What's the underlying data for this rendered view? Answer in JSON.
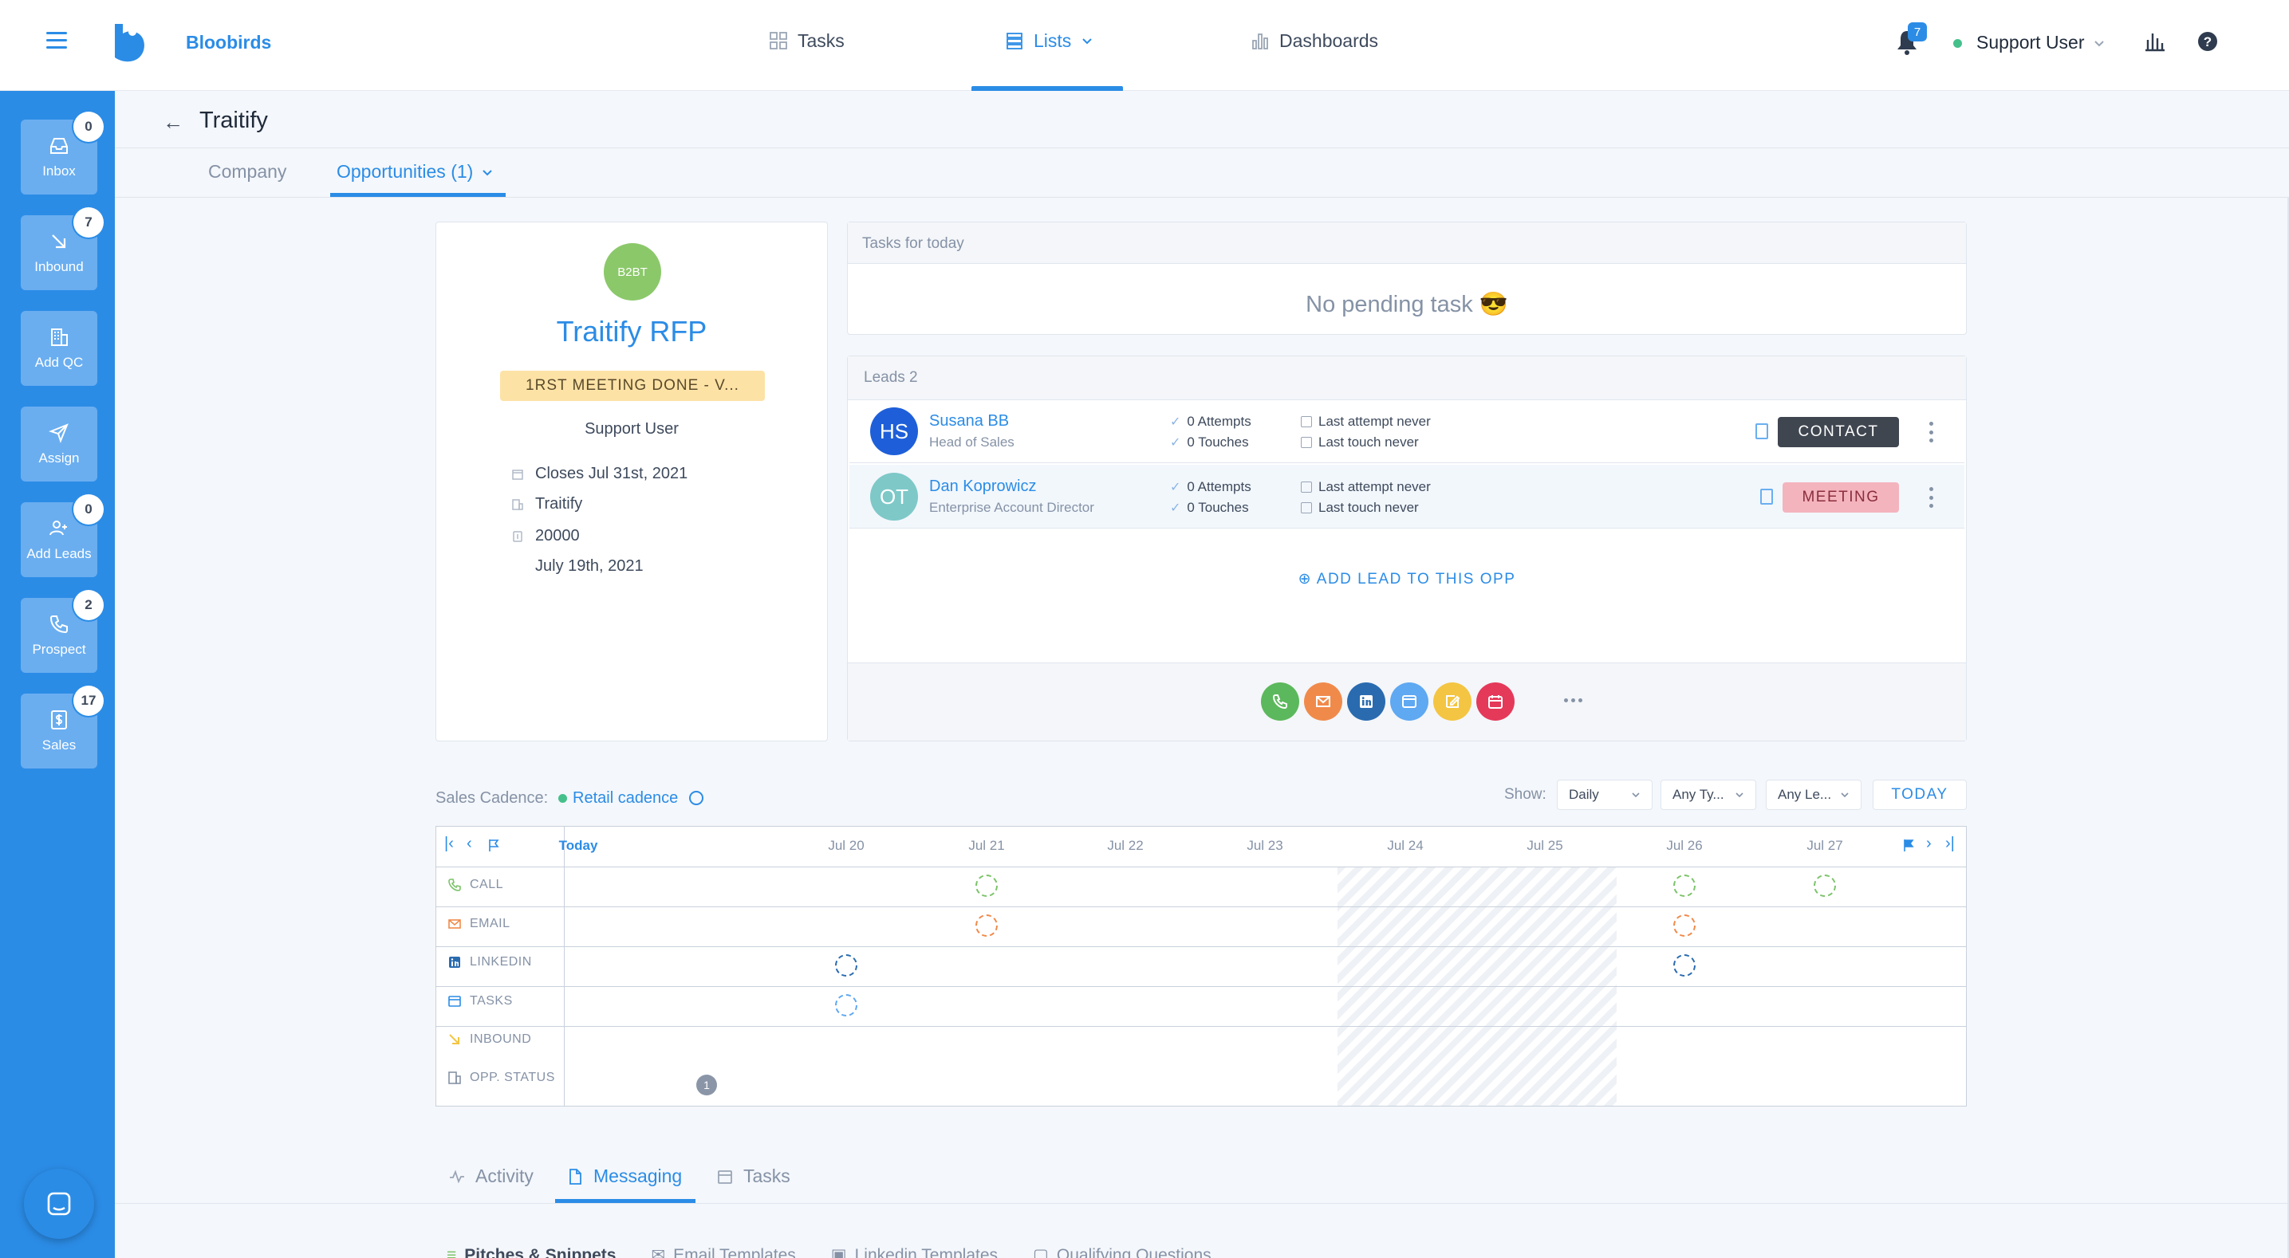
{
  "app": {
    "brand": "Bloobirds",
    "notifications": "7",
    "user": "Support User"
  },
  "nav": {
    "tasks": "Tasks",
    "lists": "Lists",
    "dashboards": "Dashboards"
  },
  "sidebar": {
    "items": [
      {
        "label": "Inbox",
        "badge": "0",
        "icon": "inbox-icon"
      },
      {
        "label": "Inbound",
        "badge": "7",
        "icon": "arrow-down-right-icon"
      },
      {
        "label": "Add QC",
        "badge": "",
        "icon": "building-icon"
      },
      {
        "label": "Assign",
        "badge": "",
        "icon": "send-icon"
      },
      {
        "label": "Add Leads",
        "badge": "0",
        "icon": "add-user-icon"
      },
      {
        "label": "Prospect",
        "badge": "2",
        "icon": "phone-icon"
      },
      {
        "label": "Sales",
        "badge": "17",
        "icon": "dollar-icon"
      }
    ]
  },
  "page": {
    "title": "Traitify"
  },
  "subtabs": {
    "company": "Company",
    "opportunities": "Opportunities (1)"
  },
  "opportunity": {
    "initials": "B2BT",
    "name": "Traitify RFP",
    "status": "1RST MEETING DONE - V...",
    "owner": "Support User",
    "close_date": "Closes Jul 31st, 2021",
    "company": "Traitify",
    "amount": "20000",
    "created": "July 19th, 2021"
  },
  "tasks_today": {
    "title": "Tasks for today",
    "empty": "No pending task 😎"
  },
  "leads": {
    "title": "Leads 2",
    "rows": [
      {
        "initials": "HS",
        "name": "Susana BB",
        "role": "Head of Sales",
        "attempts": "0 Attempts",
        "touches": "0 Touches",
        "last_attempt": "Last attempt never",
        "last_touch": "Last touch never",
        "action": "CONTACT",
        "avatar_color": "#1e5fd9"
      },
      {
        "initials": "OT",
        "name": "Dan Koprowicz",
        "role": "Enterprise Account Director",
        "attempts": "0 Attempts",
        "touches": "0 Touches",
        "last_attempt": "Last attempt never",
        "last_touch": "Last touch never",
        "action": "MEETING",
        "avatar_color": "#7ec8c8"
      }
    ],
    "add_label": "ADD LEAD TO THIS OPP"
  },
  "actions": [
    {
      "icon": "phone-icon",
      "color": "#5cb85c"
    },
    {
      "icon": "mail-icon",
      "color": "#f08a4b"
    },
    {
      "icon": "linkedin-icon",
      "color": "#2a6bb0"
    },
    {
      "icon": "task-icon",
      "color": "#5fa8f2"
    },
    {
      "icon": "note-icon",
      "color": "#f4c542"
    },
    {
      "icon": "calendar-icon",
      "color": "#e5395a"
    }
  ],
  "cadence": {
    "label": "Sales Cadence:",
    "name": "Retail cadence",
    "show_label": "Show:",
    "filters": [
      "Daily",
      "Any Ty...",
      "Any Le..."
    ],
    "today_button": "TODAY",
    "days": [
      "Today",
      "Jul 20",
      "Jul 21",
      "Jul 22",
      "Jul 23",
      "Jul 24",
      "Jul 25",
      "Jul 26",
      "Jul 27"
    ],
    "rows": [
      "CALL",
      "EMAIL",
      "LINKEDIN",
      "TASKS",
      "INBOUND",
      "OPP. STATUS"
    ],
    "opp_status_count": "1",
    "colors": {
      "call": "#7cc36a",
      "email": "#f08a4b",
      "linkedin": "#2a6bb0",
      "tasks": "#5fa8f2",
      "inbound": "#f4c542",
      "status": "#8a96a8"
    }
  },
  "bottom_tabs": {
    "activity": "Activity",
    "messaging": "Messaging",
    "tasks": "Tasks"
  },
  "messaging_tabs": [
    "Pitches & Snippets",
    "Email Templates",
    "Linkedin Templates",
    "Qualifying Questions"
  ]
}
